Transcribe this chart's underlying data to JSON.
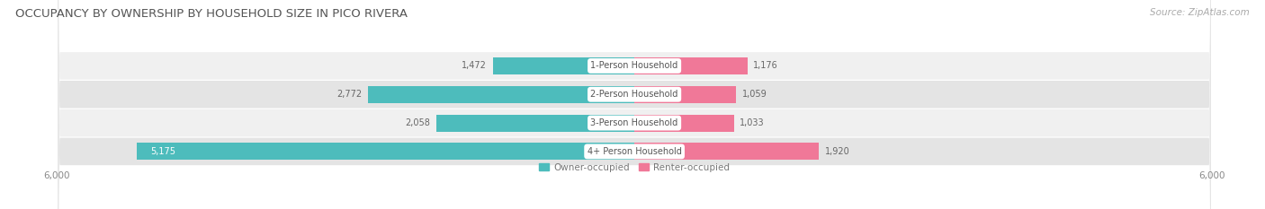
{
  "title": "OCCUPANCY BY OWNERSHIP BY HOUSEHOLD SIZE IN PICO RIVERA",
  "source": "Source: ZipAtlas.com",
  "categories": [
    "1-Person Household",
    "2-Person Household",
    "3-Person Household",
    "4+ Person Household"
  ],
  "owner_values": [
    1472,
    2772,
    2058,
    5175
  ],
  "renter_values": [
    1176,
    1059,
    1033,
    1920
  ],
  "owner_color": "#4dbcbc",
  "renter_color": "#f07898",
  "row_bg_color_odd": "#f0f0f0",
  "row_bg_color_even": "#e4e4e4",
  "x_max": 6000,
  "legend_owner": "Owner-occupied",
  "legend_renter": "Renter-occupied",
  "title_fontsize": 9.5,
  "source_fontsize": 7.5,
  "label_fontsize": 7,
  "value_fontsize": 7,
  "tick_fontsize": 7.5
}
